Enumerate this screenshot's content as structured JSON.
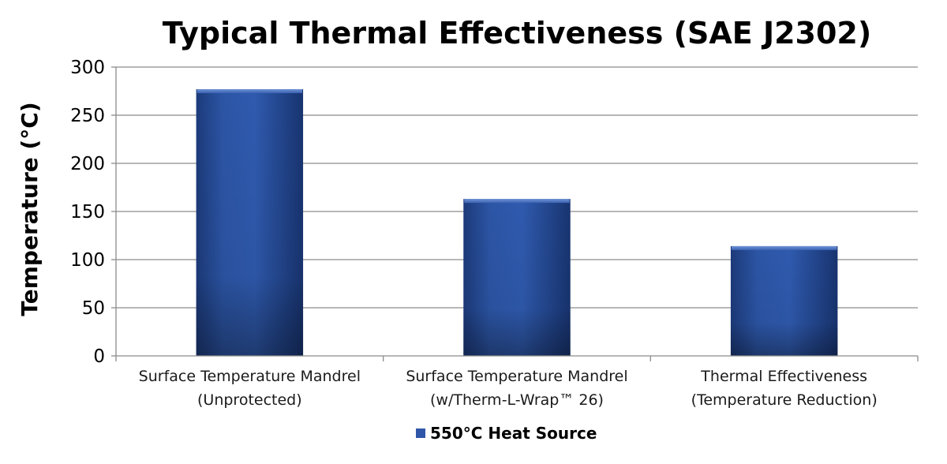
{
  "chart_data": {
    "type": "bar",
    "title": "Typical Thermal Effectiveness (SAE J2302)",
    "xlabel": "",
    "ylabel": "Temperature (°C)",
    "ylim": [
      0,
      300
    ],
    "yticks": [
      "0",
      "50",
      "100",
      "150",
      "200",
      "250",
      "300"
    ],
    "categories": [
      [
        "Surface Temperature Mandrel",
        "(Unprotected)"
      ],
      [
        "Surface Temperature Mandrel",
        "(w/Therm-L-Wrap™ 26)"
      ],
      [
        "Thermal Effectiveness",
        "(Temperature Reduction)"
      ]
    ],
    "series": [
      {
        "name": "550°C Heat Source",
        "values": [
          277,
          163,
          114
        ],
        "color": "#2f56a8"
      }
    ],
    "grid": true,
    "legend_position": "bottom"
  }
}
